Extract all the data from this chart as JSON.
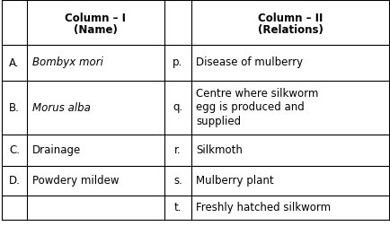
{
  "col1_header_line1": "Column – I",
  "col1_header_line2": "(Name)",
  "col2_header_line1": "Column – II",
  "col2_header_line2": "(Relations)",
  "left_items": [
    {
      "label": "A.",
      "text": "Bombyx mori",
      "italic": true
    },
    {
      "label": "B.",
      "text": "Morus alba",
      "italic": true
    },
    {
      "label": "C.",
      "text": "Drainage",
      "italic": false
    },
    {
      "label": "D.",
      "text": "Powdery mildew",
      "italic": false
    }
  ],
  "right_items": [
    {
      "label": "p.",
      "text": "Disease of mulberry",
      "multiline": false
    },
    {
      "label": "q.",
      "text": "Centre where silkworm\negg is produced and\nsupplied",
      "multiline": true
    },
    {
      "label": "r.",
      "text": "Silkmoth",
      "multiline": false
    },
    {
      "label": "s.",
      "text": "Mulberry plant",
      "multiline": false
    },
    {
      "label": "t.",
      "text": "Freshly hatched silkworm",
      "multiline": false
    }
  ],
  "bg_color": "#ffffff",
  "line_color": "#000000",
  "header_fontsize": 8.5,
  "cell_fontsize": 8.5,
  "fig_width": 4.35,
  "fig_height": 2.52,
  "dpi": 100
}
